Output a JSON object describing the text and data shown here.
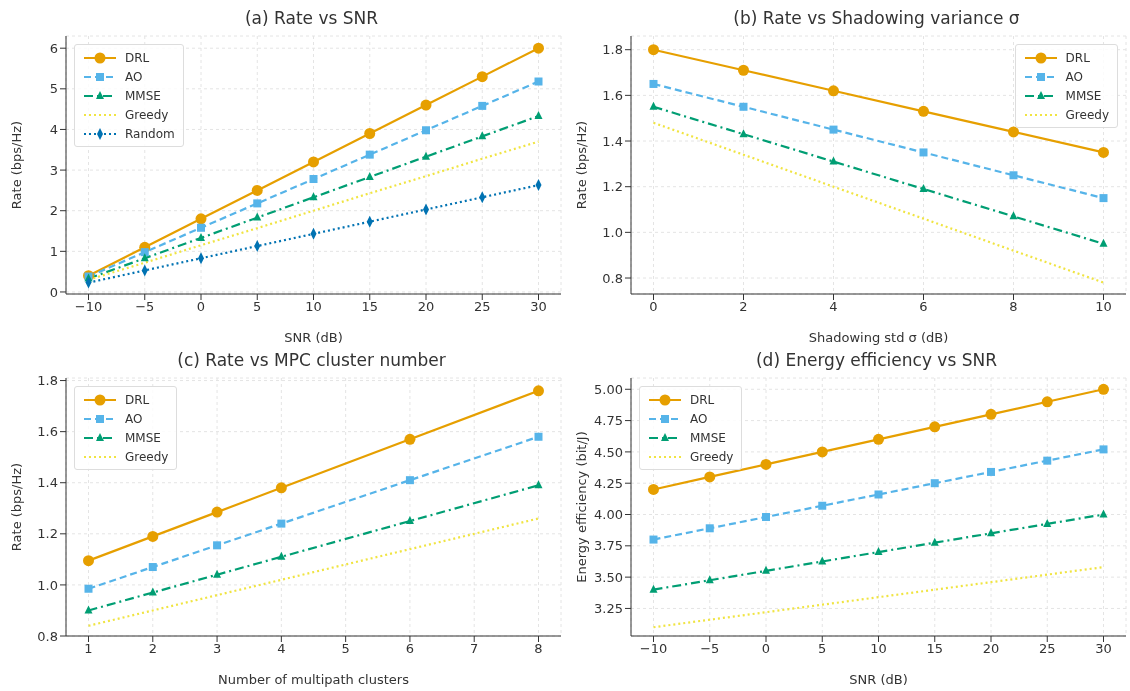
{
  "chart_data": [
    {
      "type": "line",
      "title": "(a) Rate vs SNR",
      "xlabel": "SNR (dB)",
      "ylabel": "Rate (bps/Hz)",
      "x": [
        -10,
        -5,
        0,
        5,
        10,
        15,
        20,
        25,
        30
      ],
      "xlim": [
        -12,
        32
      ],
      "xticks": [
        -10,
        -5,
        0,
        5,
        10,
        15,
        20,
        25,
        30
      ],
      "ylim": [
        -0.05,
        6.3
      ],
      "yticks": [
        0,
        1,
        2,
        3,
        4,
        5,
        6
      ],
      "grid": true,
      "legend": "top left",
      "series": [
        {
          "name": "DRL",
          "color": "#e69f00",
          "marker": "circle",
          "line_style": "solid",
          "values": [
            0.4,
            1.1,
            1.8,
            2.5,
            3.2,
            3.9,
            4.6,
            5.3,
            6.0
          ]
        },
        {
          "name": "AO",
          "color": "#56b4e9",
          "marker": "square",
          "line_style": "dashed",
          "values": [
            0.38,
            0.98,
            1.58,
            2.18,
            2.78,
            3.38,
            3.98,
            4.58,
            5.18
          ]
        },
        {
          "name": "MMSE",
          "color": "#009e73",
          "marker": "triangle",
          "line_style": "dashdot",
          "values": [
            0.33,
            0.83,
            1.33,
            1.83,
            2.33,
            2.83,
            3.33,
            3.83,
            4.33
          ]
        },
        {
          "name": "Greedy",
          "color": "#f0e442",
          "marker": "none",
          "line_style": "dotted",
          "values": [
            0.3,
            0.72,
            1.15,
            1.57,
            2.0,
            2.43,
            2.85,
            3.28,
            3.7
          ]
        },
        {
          "name": "Random",
          "color": "#0072b2",
          "marker": "diamond",
          "line_style": "dotted",
          "values": [
            0.23,
            0.53,
            0.83,
            1.13,
            1.43,
            1.73,
            2.03,
            2.33,
            2.63
          ]
        }
      ]
    },
    {
      "type": "line",
      "title": "(b) Rate vs Shadowing variance σ",
      "xlabel": "Shadowing std σ (dB)",
      "ylabel": "Rate (bps/Hz)",
      "x": [
        0,
        2,
        4,
        6,
        8,
        10
      ],
      "xlim": [
        -0.5,
        10.5
      ],
      "xticks": [
        0,
        2,
        4,
        6,
        8,
        10
      ],
      "ylim": [
        0.73,
        1.86
      ],
      "yticks": [
        {
          "value": 0.8,
          "label": "0.8"
        },
        {
          "value": 1.0,
          "label": "1.0"
        },
        {
          "value": 1.2,
          "label": "1.2"
        },
        {
          "value": 1.4,
          "label": "1.4"
        },
        {
          "value": 1.6,
          "label": "1.6"
        },
        {
          "value": 1.8,
          "label": "1.8"
        }
      ],
      "grid": true,
      "legend": "top right",
      "series": [
        {
          "name": "DRL",
          "color": "#e69f00",
          "marker": "circle",
          "line_style": "solid",
          "values": [
            1.8,
            1.71,
            1.62,
            1.53,
            1.44,
            1.35
          ]
        },
        {
          "name": "AO",
          "color": "#56b4e9",
          "marker": "square",
          "line_style": "dashed",
          "values": [
            1.65,
            1.55,
            1.45,
            1.35,
            1.25,
            1.15
          ]
        },
        {
          "name": "MMSE",
          "color": "#009e73",
          "marker": "triangle",
          "line_style": "dashdot",
          "values": [
            1.55,
            1.43,
            1.31,
            1.19,
            1.07,
            0.95
          ]
        },
        {
          "name": "Greedy",
          "color": "#f0e442",
          "marker": "none",
          "line_style": "dotted",
          "values": [
            1.48,
            1.34,
            1.2,
            1.06,
            0.92,
            0.78
          ]
        }
      ]
    },
    {
      "type": "line",
      "title": "(c) Rate vs MPC cluster number",
      "xlabel": "Number of multipath clusters",
      "ylabel": "Rate (bps/Hz)",
      "x": [
        1,
        2,
        3,
        4,
        6,
        8
      ],
      "xlim": [
        0.65,
        8.35
      ],
      "xticks": [
        1,
        2,
        3,
        4,
        5,
        6,
        7,
        8
      ],
      "ylim": [
        0.8,
        1.81
      ],
      "yticks": [
        {
          "value": 0.8,
          "label": "0.8"
        },
        {
          "value": 1.0,
          "label": "1.0"
        },
        {
          "value": 1.2,
          "label": "1.2"
        },
        {
          "value": 1.4,
          "label": "1.4"
        },
        {
          "value": 1.6,
          "label": "1.6"
        },
        {
          "value": 1.8,
          "label": "1.8"
        }
      ],
      "grid": true,
      "legend": "top left",
      "series": [
        {
          "name": "DRL",
          "color": "#e69f00",
          "marker": "circle",
          "line_style": "solid",
          "values": [
            1.095,
            1.19,
            1.285,
            1.38,
            1.57,
            1.76
          ]
        },
        {
          "name": "AO",
          "color": "#56b4e9",
          "marker": "square",
          "line_style": "dashed",
          "values": [
            0.985,
            1.07,
            1.155,
            1.24,
            1.41,
            1.58
          ]
        },
        {
          "name": "MMSE",
          "color": "#009e73",
          "marker": "triangle",
          "line_style": "dashdot",
          "values": [
            0.9,
            0.97,
            1.04,
            1.11,
            1.25,
            1.39
          ]
        },
        {
          "name": "Greedy",
          "color": "#f0e442",
          "marker": "none",
          "line_style": "dotted",
          "values": [
            0.84,
            0.9,
            0.96,
            1.02,
            1.14,
            1.26
          ]
        }
      ]
    },
    {
      "type": "line",
      "title": "(d) Energy efficiency vs SNR",
      "xlabel": "SNR (dB)",
      "ylabel": "Energy efficiency (bit/J)",
      "x": [
        -10,
        -5,
        0,
        5,
        10,
        15,
        20,
        25,
        30
      ],
      "xlim": [
        -12,
        32
      ],
      "xticks": [
        -10,
        -5,
        0,
        5,
        10,
        15,
        20,
        25,
        30
      ],
      "ylim": [
        3.03,
        5.09
      ],
      "yticks": [
        {
          "value": 3.25,
          "label": "3.25"
        },
        {
          "value": 3.5,
          "label": "3.50"
        },
        {
          "value": 3.75,
          "label": "3.75"
        },
        {
          "value": 4.0,
          "label": "4.00"
        },
        {
          "value": 4.25,
          "label": "4.25"
        },
        {
          "value": 4.5,
          "label": "4.50"
        },
        {
          "value": 4.75,
          "label": "4.75"
        },
        {
          "value": 5.0,
          "label": "5.00"
        }
      ],
      "grid": true,
      "legend": "top left",
      "series": [
        {
          "name": "DRL",
          "color": "#e69f00",
          "marker": "circle",
          "line_style": "solid",
          "values": [
            4.2,
            4.3,
            4.4,
            4.5,
            4.6,
            4.7,
            4.8,
            4.9,
            5.0
          ]
        },
        {
          "name": "AO",
          "color": "#56b4e9",
          "marker": "square",
          "line_style": "dashed",
          "values": [
            3.8,
            3.89,
            3.98,
            4.07,
            4.16,
            4.25,
            4.34,
            4.43,
            4.52
          ]
        },
        {
          "name": "MMSE",
          "color": "#009e73",
          "marker": "triangle",
          "line_style": "dashdot",
          "values": [
            3.4,
            3.475,
            3.55,
            3.625,
            3.7,
            3.775,
            3.85,
            3.925,
            4.0
          ]
        },
        {
          "name": "Greedy",
          "color": "#f0e442",
          "marker": "none",
          "line_style": "dotted",
          "values": [
            3.1,
            3.16,
            3.22,
            3.28,
            3.34,
            3.4,
            3.46,
            3.52,
            3.58
          ]
        }
      ]
    }
  ]
}
